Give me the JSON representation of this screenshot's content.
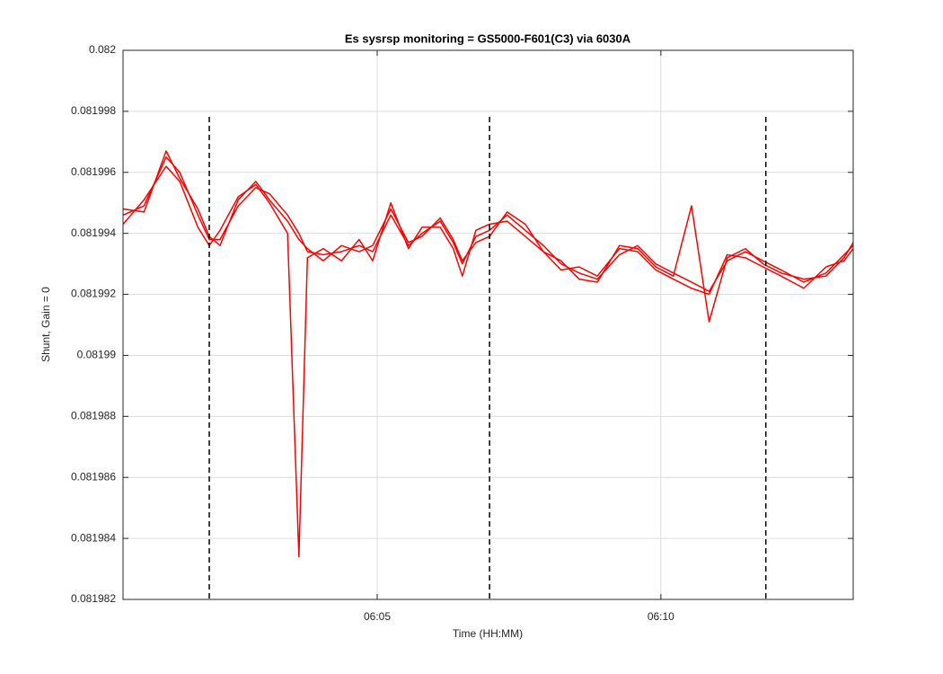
{
  "chart_data": {
    "type": "line",
    "title": "Es sysrsp monitoring = GS5000-F601(C3) via 6030A",
    "x_label": "Time (HH:MM)",
    "y_label": "Shunt, Gain = 0",
    "x": [
      360.52,
      360.89,
      361.28,
      361.52,
      361.84,
      362.04,
      362.23,
      362.55,
      362.86,
      363.1,
      363.42,
      363.62,
      363.77,
      364.05,
      364.37,
      364.68,
      364.92,
      365.24,
      365.55,
      365.79,
      366.11,
      366.34,
      366.5,
      366.74,
      366.98,
      367.29,
      367.61,
      367.93,
      368.24,
      368.56,
      368.88,
      369.27,
      369.59,
      369.91,
      370.22,
      370.54,
      370.85,
      371.17,
      371.49,
      371.8,
      372.12,
      372.52,
      372.91,
      373.23,
      373.39
    ],
    "series": [
      {
        "color": "#ff0000",
        "values": [
          0.0819946,
          0.0819949,
          0.0819965,
          0.081996,
          0.0819946,
          0.0819938,
          0.0819938,
          0.0819949,
          0.0819955,
          0.0819953,
          0.0819946,
          0.081994,
          0.0819934,
          0.0819933,
          0.0819934,
          0.0819936,
          0.0819934,
          0.0819946,
          0.0819936,
          0.081994,
          0.0819944,
          0.0819937,
          0.081993,
          0.0819939,
          0.0819941,
          0.0819946,
          0.0819941,
          0.0819936,
          0.081993,
          0.0819927,
          0.0819925,
          0.0819933,
          0.0819936,
          0.081993,
          0.0819927,
          0.0819924,
          0.0819921,
          0.0819931,
          0.0819934,
          0.0819931,
          0.0819928,
          0.0819924,
          0.0819927,
          0.0819933,
          0.0819936
        ]
      },
      {
        "color": "#ff0000",
        "values": [
          0.0819943,
          0.0819951,
          0.0819962,
          0.0819957,
          0.0819942,
          0.0819936,
          0.0819941,
          0.0819952,
          0.0819956,
          0.081995,
          0.081994,
          0.0819834,
          0.0819932,
          0.0819935,
          0.0819931,
          0.0819938,
          0.0819931,
          0.081995,
          0.0819935,
          0.0819942,
          0.0819942,
          0.0819935,
          0.0819926,
          0.0819941,
          0.0819943,
          0.0819944,
          0.0819939,
          0.0819934,
          0.0819928,
          0.0819929,
          0.0819926,
          0.0819935,
          0.0819934,
          0.0819928,
          0.0819925,
          0.0819922,
          0.081992,
          0.0819933,
          0.0819932,
          0.0819929,
          0.0819926,
          0.0819922,
          0.0819929,
          0.0819931,
          0.0819935
        ]
      },
      {
        "color": "#ff0000",
        "values": [
          0.0819948,
          0.0819947,
          0.0819967,
          0.0819958,
          0.0819948,
          0.0819939,
          0.0819936,
          0.0819951,
          0.0819957,
          0.0819951,
          0.0819944,
          0.0819938,
          0.0819935,
          0.0819931,
          0.0819936,
          0.0819934,
          0.0819936,
          0.0819948,
          0.0819937,
          0.0819939,
          0.0819945,
          0.0819938,
          0.0819931,
          0.0819937,
          0.0819939,
          0.0819947,
          0.0819943,
          0.0819934,
          0.0819931,
          0.0819925,
          0.0819924,
          0.0819936,
          0.0819935,
          0.0819929,
          0.0819926,
          0.0819949,
          0.0819911,
          0.0819932,
          0.0819935,
          0.081993,
          0.0819927,
          0.0819925,
          0.0819926,
          0.0819932,
          0.0819937
        ]
      }
    ],
    "vlines": [
      362.04,
      366.98,
      371.85
    ],
    "xlim": [
      360.52,
      373.39
    ],
    "xticks": [
      {
        "value": 365,
        "label": "06:05"
      },
      {
        "value": 370,
        "label": "06:10"
      }
    ],
    "ylim": [
      0.081982,
      0.082
    ],
    "yticks": [
      0.081982,
      0.081984,
      0.081986,
      0.081988,
      0.08199,
      0.081992,
      0.081994,
      0.081996,
      0.081998,
      0.082
    ],
    "grid": true
  }
}
